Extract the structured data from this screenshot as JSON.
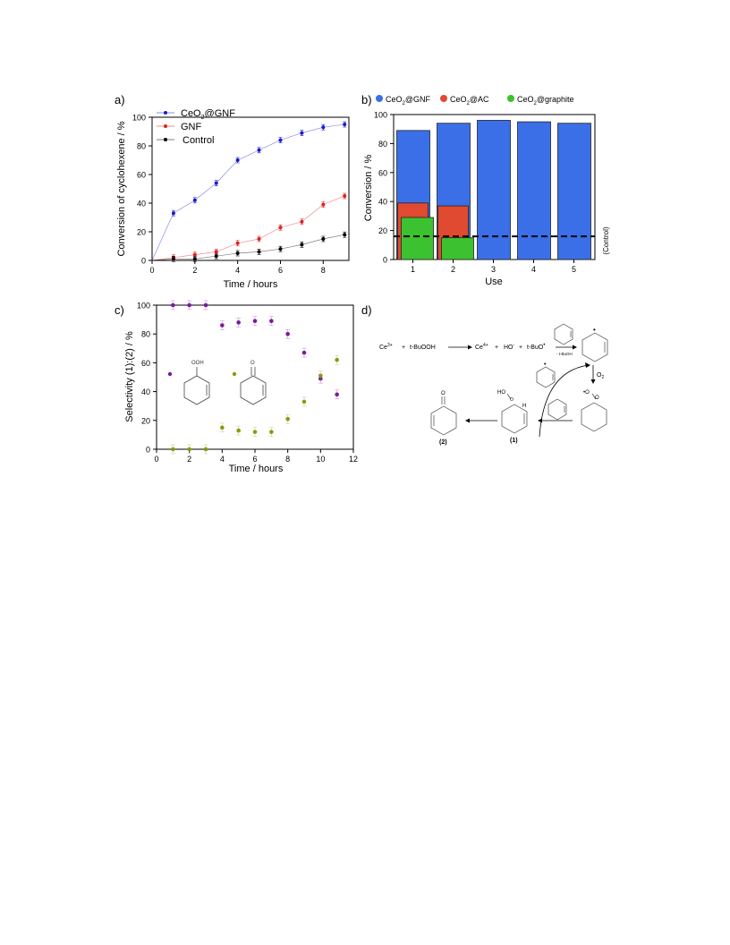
{
  "chart_data": [
    {
      "panel_label": "a)",
      "type": "line",
      "xlabel": "Time / hours",
      "ylabel": "Conversion of cyclohexene / %",
      "xlim": [
        0,
        9.2
      ],
      "ylim": [
        0,
        100
      ],
      "x_ticks": [
        0,
        2,
        4,
        6,
        8
      ],
      "y_ticks": [
        0,
        20,
        40,
        60,
        80,
        100
      ],
      "legend_placement": "top-left",
      "series": [
        {
          "name": "CeO2@GNF",
          "name_main": "CeO",
          "name_sub": "2",
          "name_rest": "@GNF",
          "color": "#1a1acc",
          "x": [
            0,
            1,
            2,
            3,
            4,
            5,
            6,
            7,
            8,
            9
          ],
          "values": [
            0,
            33,
            42,
            54,
            70,
            77,
            84,
            89,
            93,
            95
          ]
        },
        {
          "name": "GNF",
          "color": "#e02020",
          "x": [
            0,
            1,
            2,
            3,
            4,
            5,
            6,
            7,
            8,
            9
          ],
          "values": [
            0,
            2,
            4,
            6,
            12,
            15,
            23,
            27,
            39,
            45
          ]
        },
        {
          "name": "Control",
          "color": "#000000",
          "x": [
            0,
            1,
            2,
            3,
            4,
            5,
            6,
            7,
            8,
            9
          ],
          "values": [
            0,
            1,
            1,
            3,
            5,
            6,
            8,
            11,
            15,
            18
          ]
        }
      ]
    },
    {
      "panel_label": "b)",
      "type": "bar",
      "xlabel": "Use",
      "ylabel": "Conversion / %",
      "categories": [
        "1",
        "2",
        "3",
        "4",
        "5"
      ],
      "ylim": [
        0,
        100
      ],
      "y_ticks": [
        0,
        20,
        40,
        60,
        80,
        100
      ],
      "legend_placement": "top",
      "control_value": 16,
      "control_label": "(Control)",
      "series": [
        {
          "name": "CeO2@GNF",
          "name_main": "CeO",
          "name_sub": "2",
          "name_rest": "@GNF",
          "color": "#3b6fe8",
          "values": [
            89,
            94,
            96,
            95,
            94
          ]
        },
        {
          "name": "CeO2@AC",
          "name_main": "CeO",
          "name_sub": "2",
          "name_rest": "@AC",
          "color": "#e04a30",
          "values": [
            39,
            37,
            null,
            null,
            null
          ]
        },
        {
          "name": "CeO2@graphite",
          "name_main": "CeO",
          "name_sub": "2",
          "name_rest": "@graphite",
          "color": "#3cc230",
          "values": [
            29,
            15,
            null,
            null,
            null
          ]
        }
      ]
    },
    {
      "panel_label": "c)",
      "type": "scatter",
      "xlabel": "Time / hours",
      "ylabel": "Selectivity (1):(2) / %",
      "xlim": [
        0,
        12
      ],
      "ylim": [
        0,
        100
      ],
      "x_ticks": [
        0,
        2,
        4,
        6,
        8,
        10,
        12
      ],
      "y_ticks": [
        0,
        20,
        40,
        60,
        80,
        100
      ],
      "series": [
        {
          "id": "(1)",
          "color": "#7a1aa0",
          "x": [
            1,
            2,
            3,
            4,
            5,
            6,
            7,
            8,
            9,
            10,
            11
          ],
          "values": [
            100,
            100,
            100,
            86,
            88,
            89,
            89,
            80,
            67,
            49,
            38
          ]
        },
        {
          "id": "(2)",
          "color": "#8a9a10",
          "x": [
            1,
            2,
            3,
            4,
            5,
            6,
            7,
            8,
            9,
            10,
            11
          ],
          "values": [
            0,
            0,
            0,
            15,
            13,
            12,
            12,
            21,
            33,
            51,
            62
          ]
        }
      ],
      "structure_labels": {
        "hydroperoxide": "OOH",
        "ketone": "O"
      }
    }
  ],
  "scheme_d": {
    "panel_label": "d)",
    "ce3": "Ce",
    "ce3_sup": "3+",
    "plus1": "+",
    "tbuooh": "t-BuOOH",
    "ce4": "Ce",
    "ce4_sup": "4+",
    "plus2": "+",
    "ho": "HO",
    "ho_sup": "-",
    "plus3": "+",
    "tbuo": "t-BuO",
    "tbuo_sup": "•",
    "minus_tbuoh": "- t-BuOH",
    "o2": "O",
    "o2_sub": "2",
    "radical_dot": "•",
    "peroxy_o": "O",
    "hoo": "HO",
    "o_small": "O",
    "h": "H",
    "ketone_o": "O",
    "label1": "(1)",
    "label2": "(2)"
  }
}
